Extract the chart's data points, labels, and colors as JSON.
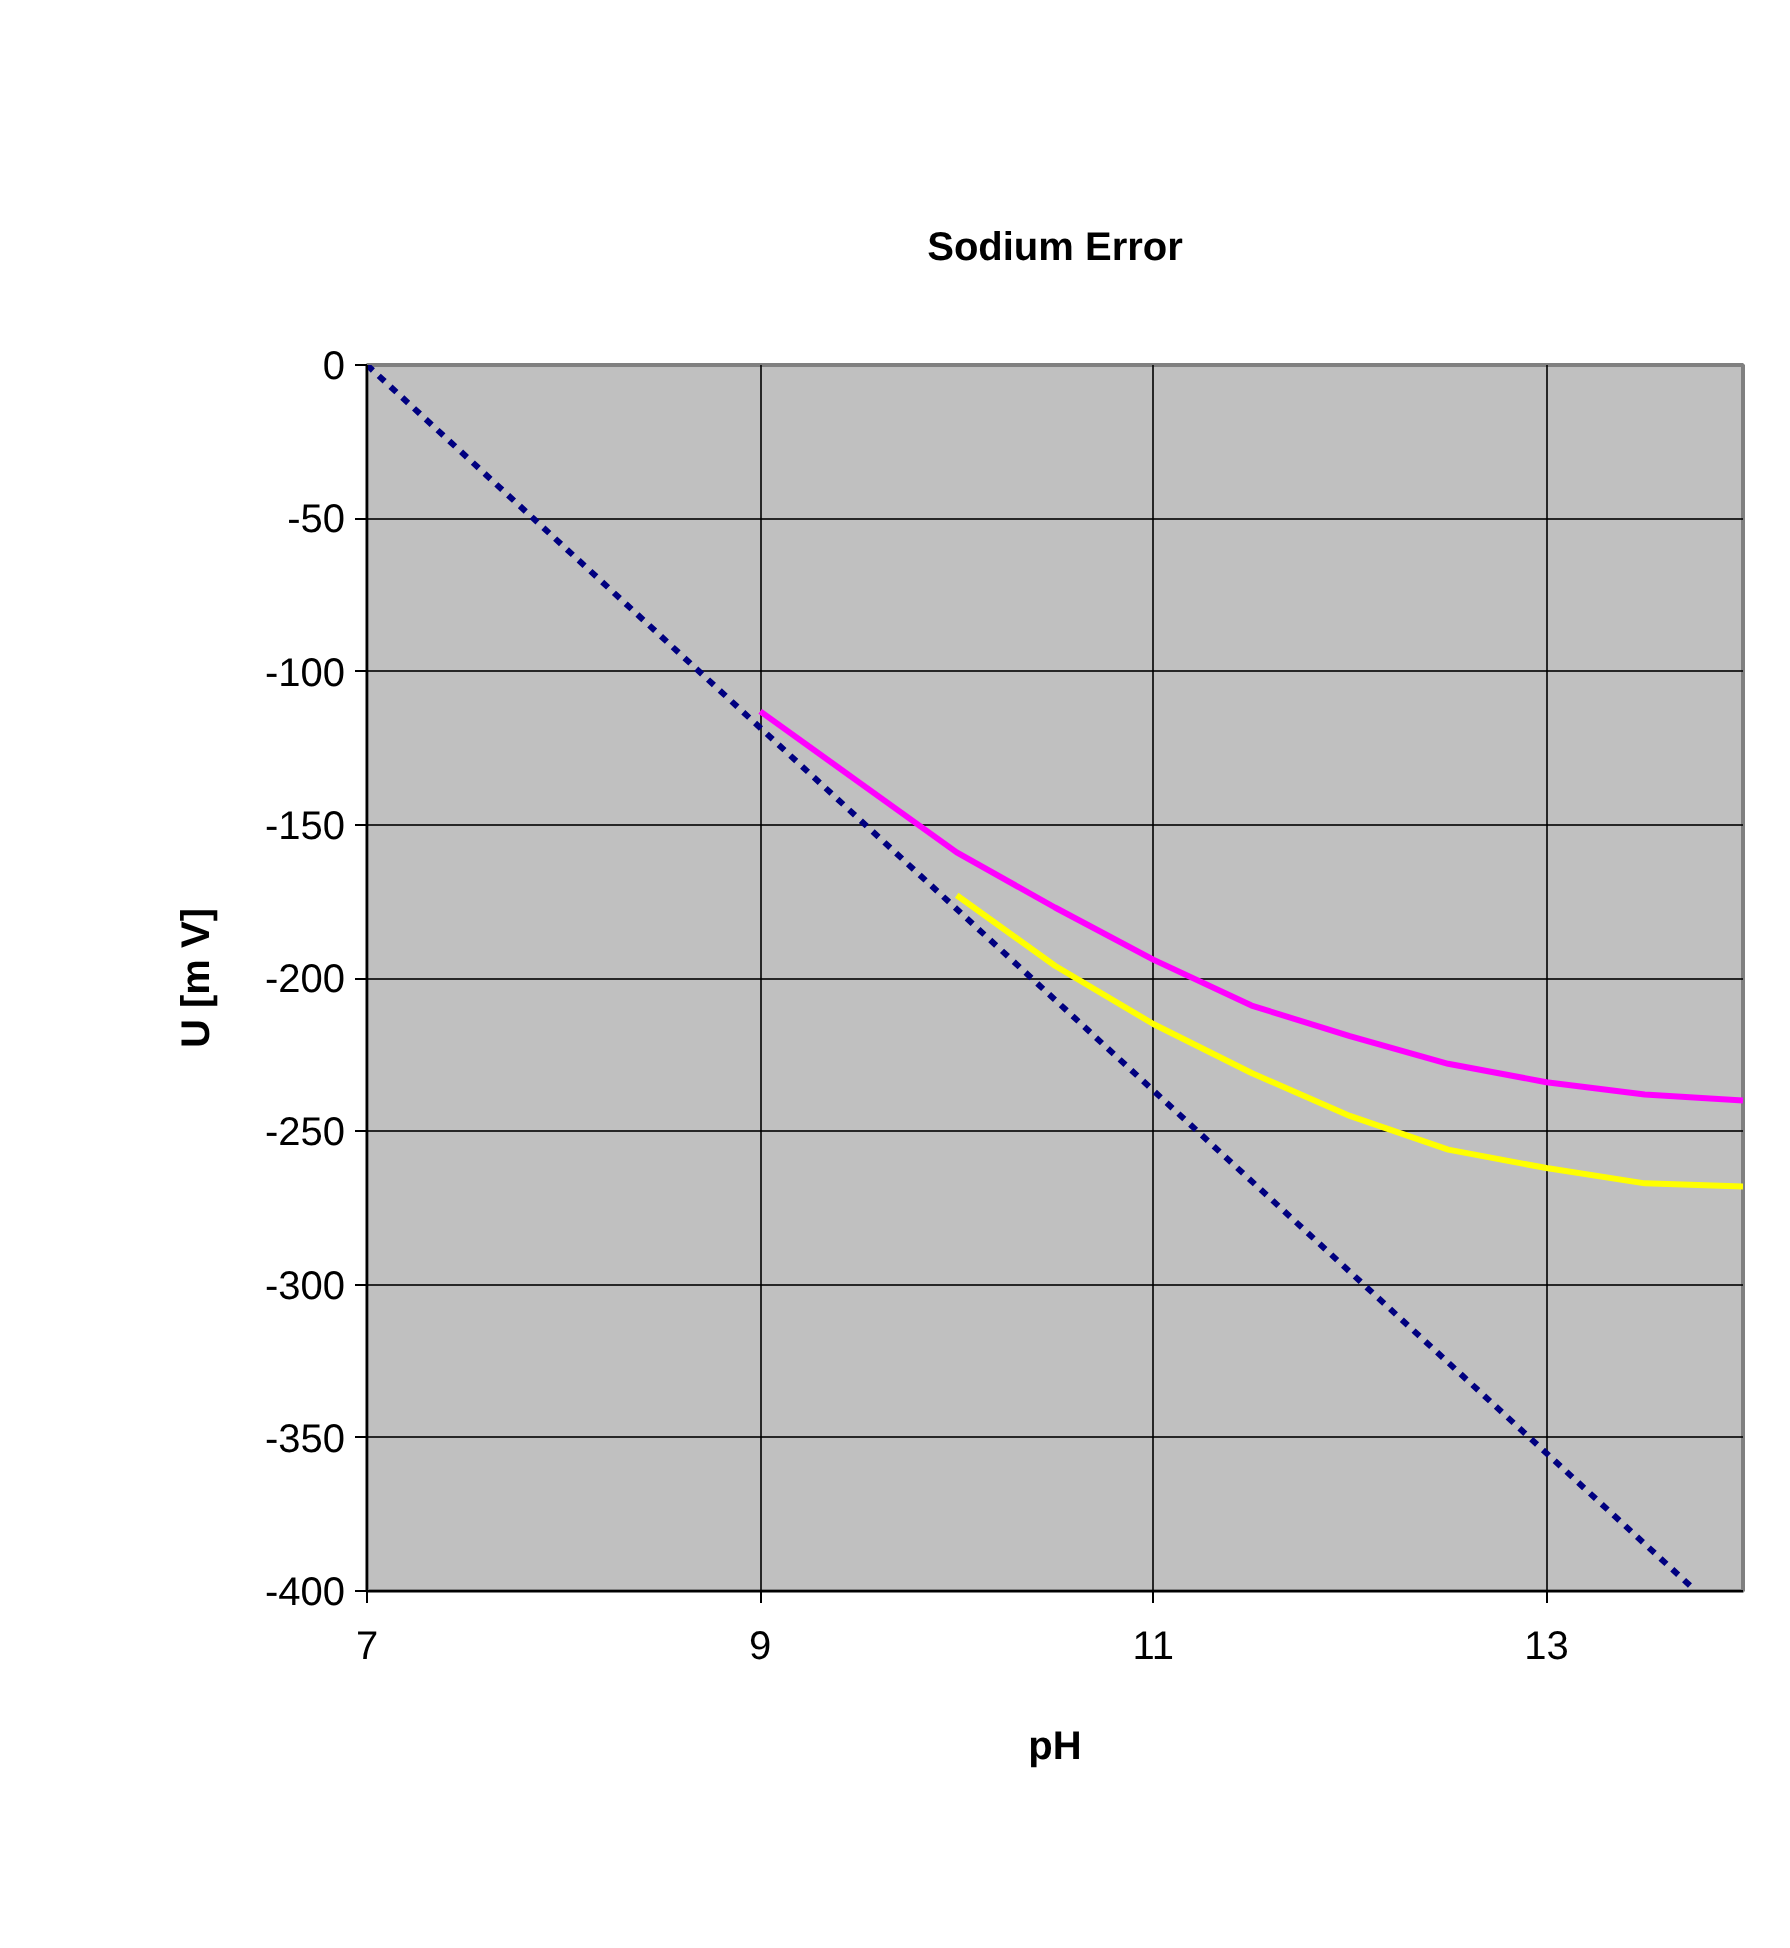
{
  "chart_data": {
    "type": "line",
    "title": "Sodium Error",
    "xlabel": "pH",
    "ylabel": "U [m V]",
    "xlim": [
      7,
      14
    ],
    "ylim": [
      -400,
      0
    ],
    "xticks": [
      7,
      9,
      11,
      13
    ],
    "yticks": [
      0,
      -50,
      -100,
      -150,
      -200,
      -250,
      -300,
      -350,
      -400
    ],
    "grid": true,
    "marker": "none",
    "series": [
      {
        "color": "#000080",
        "line_style": "dashed",
        "x": [
          7,
          13.76
        ],
        "values": [
          0,
          -400
        ]
      },
      {
        "color": "#ff00ff",
        "line_style": "solid",
        "x": [
          9,
          9.5,
          10,
          10.5,
          11,
          11.5,
          12,
          12.5,
          13,
          13.5,
          14
        ],
        "values": [
          -113,
          -136,
          -159,
          -177,
          -194,
          -209,
          -219,
          -228,
          -234,
          -238,
          -240
        ]
      },
      {
        "color": "#ffff00",
        "line_style": "solid",
        "x": [
          10,
          10.5,
          11,
          11.5,
          12,
          12.5,
          13,
          13.5,
          14
        ],
        "values": [
          -173,
          -196,
          -215,
          -231,
          -245,
          -256,
          -262,
          -267,
          -268
        ]
      }
    ]
  }
}
